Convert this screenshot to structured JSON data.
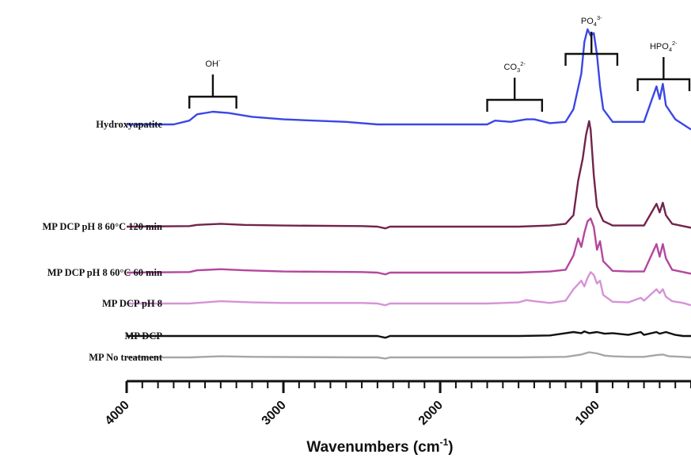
{
  "chart_data": {
    "type": "line",
    "title": "",
    "xlabel": "Wavenumbers (cm",
    "xlabel_superscript": "-1",
    "xlabel_close": ")",
    "ylabel": "",
    "xlim": [
      4000,
      400
    ],
    "x_reversed": true,
    "grid": false,
    "x_ticks": [
      4000,
      3000,
      2000,
      1000
    ],
    "x_tick_labels": [
      "4000",
      "3000",
      "2000",
      "1000"
    ],
    "series": [
      {
        "name": "Hydroxyapatite",
        "color": "#3b47e6",
        "points": [
          [
            4000,
            0.0
          ],
          [
            3700,
            0.0
          ],
          [
            3600,
            0.03
          ],
          [
            3550,
            0.08
          ],
          [
            3450,
            0.1
          ],
          [
            3350,
            0.09
          ],
          [
            3200,
            0.06
          ],
          [
            3000,
            0.04
          ],
          [
            2600,
            0.02
          ],
          [
            2400,
            0.0
          ],
          [
            2000,
            0.0
          ],
          [
            1700,
            0.0
          ],
          [
            1650,
            0.03
          ],
          [
            1550,
            0.02
          ],
          [
            1450,
            0.04
          ],
          [
            1400,
            0.04
          ],
          [
            1300,
            0.01
          ],
          [
            1200,
            0.02
          ],
          [
            1150,
            0.12
          ],
          [
            1100,
            0.4
          ],
          [
            1080,
            0.65
          ],
          [
            1060,
            0.75
          ],
          [
            1040,
            0.7
          ],
          [
            1020,
            0.72
          ],
          [
            1000,
            0.55
          ],
          [
            980,
            0.3
          ],
          [
            960,
            0.12
          ],
          [
            900,
            0.02
          ],
          [
            800,
            0.02
          ],
          [
            700,
            0.02
          ],
          [
            620,
            0.3
          ],
          [
            600,
            0.2
          ],
          [
            580,
            0.32
          ],
          [
            560,
            0.15
          ],
          [
            500,
            0.04
          ],
          [
            450,
            0.0
          ],
          [
            400,
            -0.04
          ]
        ]
      },
      {
        "name": "MP DCP pH 8 60°C 120 min",
        "color": "#72234d",
        "points": [
          [
            4000,
            0.0
          ],
          [
            3600,
            0.01
          ],
          [
            3550,
            0.03
          ],
          [
            3400,
            0.05
          ],
          [
            3250,
            0.03
          ],
          [
            3000,
            0.02
          ],
          [
            2500,
            0.01
          ],
          [
            2400,
            0.0
          ],
          [
            2350,
            -0.03
          ],
          [
            2320,
            0.0
          ],
          [
            2000,
            0.0
          ],
          [
            1500,
            0.0
          ],
          [
            1300,
            0.02
          ],
          [
            1200,
            0.05
          ],
          [
            1150,
            0.2
          ],
          [
            1120,
            0.8
          ],
          [
            1090,
            1.2
          ],
          [
            1070,
            1.6
          ],
          [
            1050,
            1.85
          ],
          [
            1040,
            1.7
          ],
          [
            1020,
            0.9
          ],
          [
            1000,
            0.35
          ],
          [
            960,
            0.1
          ],
          [
            900,
            0.02
          ],
          [
            800,
            0.02
          ],
          [
            700,
            0.02
          ],
          [
            620,
            0.4
          ],
          [
            600,
            0.25
          ],
          [
            580,
            0.42
          ],
          [
            560,
            0.2
          ],
          [
            520,
            0.05
          ],
          [
            450,
            0.01
          ],
          [
            400,
            -0.02
          ]
        ]
      },
      {
        "name": "MP DCP pH 8 60°C 60 min",
        "color": "#b4479e",
        "points": [
          [
            4000,
            0.0
          ],
          [
            3600,
            0.01
          ],
          [
            3550,
            0.04
          ],
          [
            3400,
            0.06
          ],
          [
            3250,
            0.04
          ],
          [
            3000,
            0.02
          ],
          [
            2500,
            0.01
          ],
          [
            2400,
            0.0
          ],
          [
            2350,
            -0.03
          ],
          [
            2320,
            0.0
          ],
          [
            2000,
            0.0
          ],
          [
            1500,
            0.0
          ],
          [
            1300,
            0.02
          ],
          [
            1200,
            0.05
          ],
          [
            1150,
            0.3
          ],
          [
            1120,
            0.6
          ],
          [
            1100,
            0.45
          ],
          [
            1080,
            0.7
          ],
          [
            1060,
            0.9
          ],
          [
            1040,
            0.95
          ],
          [
            1020,
            0.8
          ],
          [
            1000,
            0.4
          ],
          [
            980,
            0.55
          ],
          [
            960,
            0.2
          ],
          [
            900,
            0.03
          ],
          [
            800,
            0.02
          ],
          [
            700,
            0.02
          ],
          [
            620,
            0.5
          ],
          [
            600,
            0.28
          ],
          [
            580,
            0.5
          ],
          [
            560,
            0.25
          ],
          [
            520,
            0.05
          ],
          [
            450,
            0.01
          ],
          [
            400,
            -0.02
          ]
        ]
      },
      {
        "name": "MP DCP pH 8",
        "color": "#d692d8",
        "points": [
          [
            4000,
            0.0
          ],
          [
            3600,
            0.0
          ],
          [
            3400,
            0.04
          ],
          [
            3200,
            0.02
          ],
          [
            3000,
            0.01
          ],
          [
            2500,
            0.01
          ],
          [
            2400,
            0.0
          ],
          [
            2350,
            -0.03
          ],
          [
            2320,
            0.0
          ],
          [
            2000,
            0.0
          ],
          [
            1700,
            0.0
          ],
          [
            1500,
            0.02
          ],
          [
            1450,
            0.06
          ],
          [
            1400,
            0.04
          ],
          [
            1300,
            0.01
          ],
          [
            1200,
            0.05
          ],
          [
            1150,
            0.25
          ],
          [
            1100,
            0.4
          ],
          [
            1080,
            0.3
          ],
          [
            1060,
            0.45
          ],
          [
            1040,
            0.55
          ],
          [
            1020,
            0.5
          ],
          [
            1000,
            0.35
          ],
          [
            980,
            0.4
          ],
          [
            960,
            0.15
          ],
          [
            900,
            0.03
          ],
          [
            800,
            0.02
          ],
          [
            720,
            0.1
          ],
          [
            700,
            0.05
          ],
          [
            620,
            0.25
          ],
          [
            600,
            0.18
          ],
          [
            580,
            0.25
          ],
          [
            560,
            0.12
          ],
          [
            520,
            0.04
          ],
          [
            450,
            0.01
          ],
          [
            400,
            -0.03
          ]
        ]
      },
      {
        "name": "MP DCP",
        "color": "#111111",
        "points": [
          [
            4000,
            0.0
          ],
          [
            3000,
            0.0
          ],
          [
            2400,
            0.0
          ],
          [
            2350,
            -0.03
          ],
          [
            2320,
            0.0
          ],
          [
            2000,
            0.0
          ],
          [
            1500,
            0.0
          ],
          [
            1300,
            0.01
          ],
          [
            1200,
            0.05
          ],
          [
            1150,
            0.07
          ],
          [
            1100,
            0.05
          ],
          [
            1080,
            0.08
          ],
          [
            1050,
            0.05
          ],
          [
            1000,
            0.07
          ],
          [
            950,
            0.04
          ],
          [
            900,
            0.05
          ],
          [
            800,
            0.02
          ],
          [
            720,
            0.07
          ],
          [
            700,
            0.02
          ],
          [
            620,
            0.07
          ],
          [
            600,
            0.04
          ],
          [
            560,
            0.07
          ],
          [
            500,
            0.02
          ],
          [
            450,
            0.0
          ],
          [
            400,
            0.0
          ]
        ]
      },
      {
        "name": "MP No treatment",
        "color": "#a6a6a6",
        "points": [
          [
            4000,
            0.0
          ],
          [
            3600,
            0.0
          ],
          [
            3400,
            0.02
          ],
          [
            3200,
            0.01
          ],
          [
            2500,
            0.0
          ],
          [
            2400,
            0.0
          ],
          [
            2350,
            -0.02
          ],
          [
            2320,
            0.0
          ],
          [
            2000,
            0.0
          ],
          [
            1500,
            0.0
          ],
          [
            1200,
            0.01
          ],
          [
            1100,
            0.05
          ],
          [
            1050,
            0.09
          ],
          [
            1000,
            0.07
          ],
          [
            950,
            0.03
          ],
          [
            900,
            0.02
          ],
          [
            800,
            0.01
          ],
          [
            700,
            0.01
          ],
          [
            620,
            0.04
          ],
          [
            580,
            0.05
          ],
          [
            540,
            0.02
          ],
          [
            450,
            0.01
          ],
          [
            400,
            0.0
          ]
        ]
      }
    ],
    "annotations": [
      {
        "label_main": "OH",
        "label_sup": "-",
        "label_sub": "",
        "label_sup2": "",
        "range": [
          3600,
          3300
        ]
      },
      {
        "label_main": "CO",
        "label_sub": "3",
        "label_sup": "2-",
        "label_sup2": "",
        "range": [
          1700,
          1350
        ]
      },
      {
        "label_main": "PO",
        "label_sub": "4",
        "label_sup": "3-",
        "label_sup2": "",
        "range": [
          1200,
          870
        ]
      },
      {
        "label_main": "HPO",
        "label_sub": "4",
        "label_sup": "2-",
        "label_sup2": "",
        "range": [
          740,
          400
        ]
      }
    ]
  }
}
